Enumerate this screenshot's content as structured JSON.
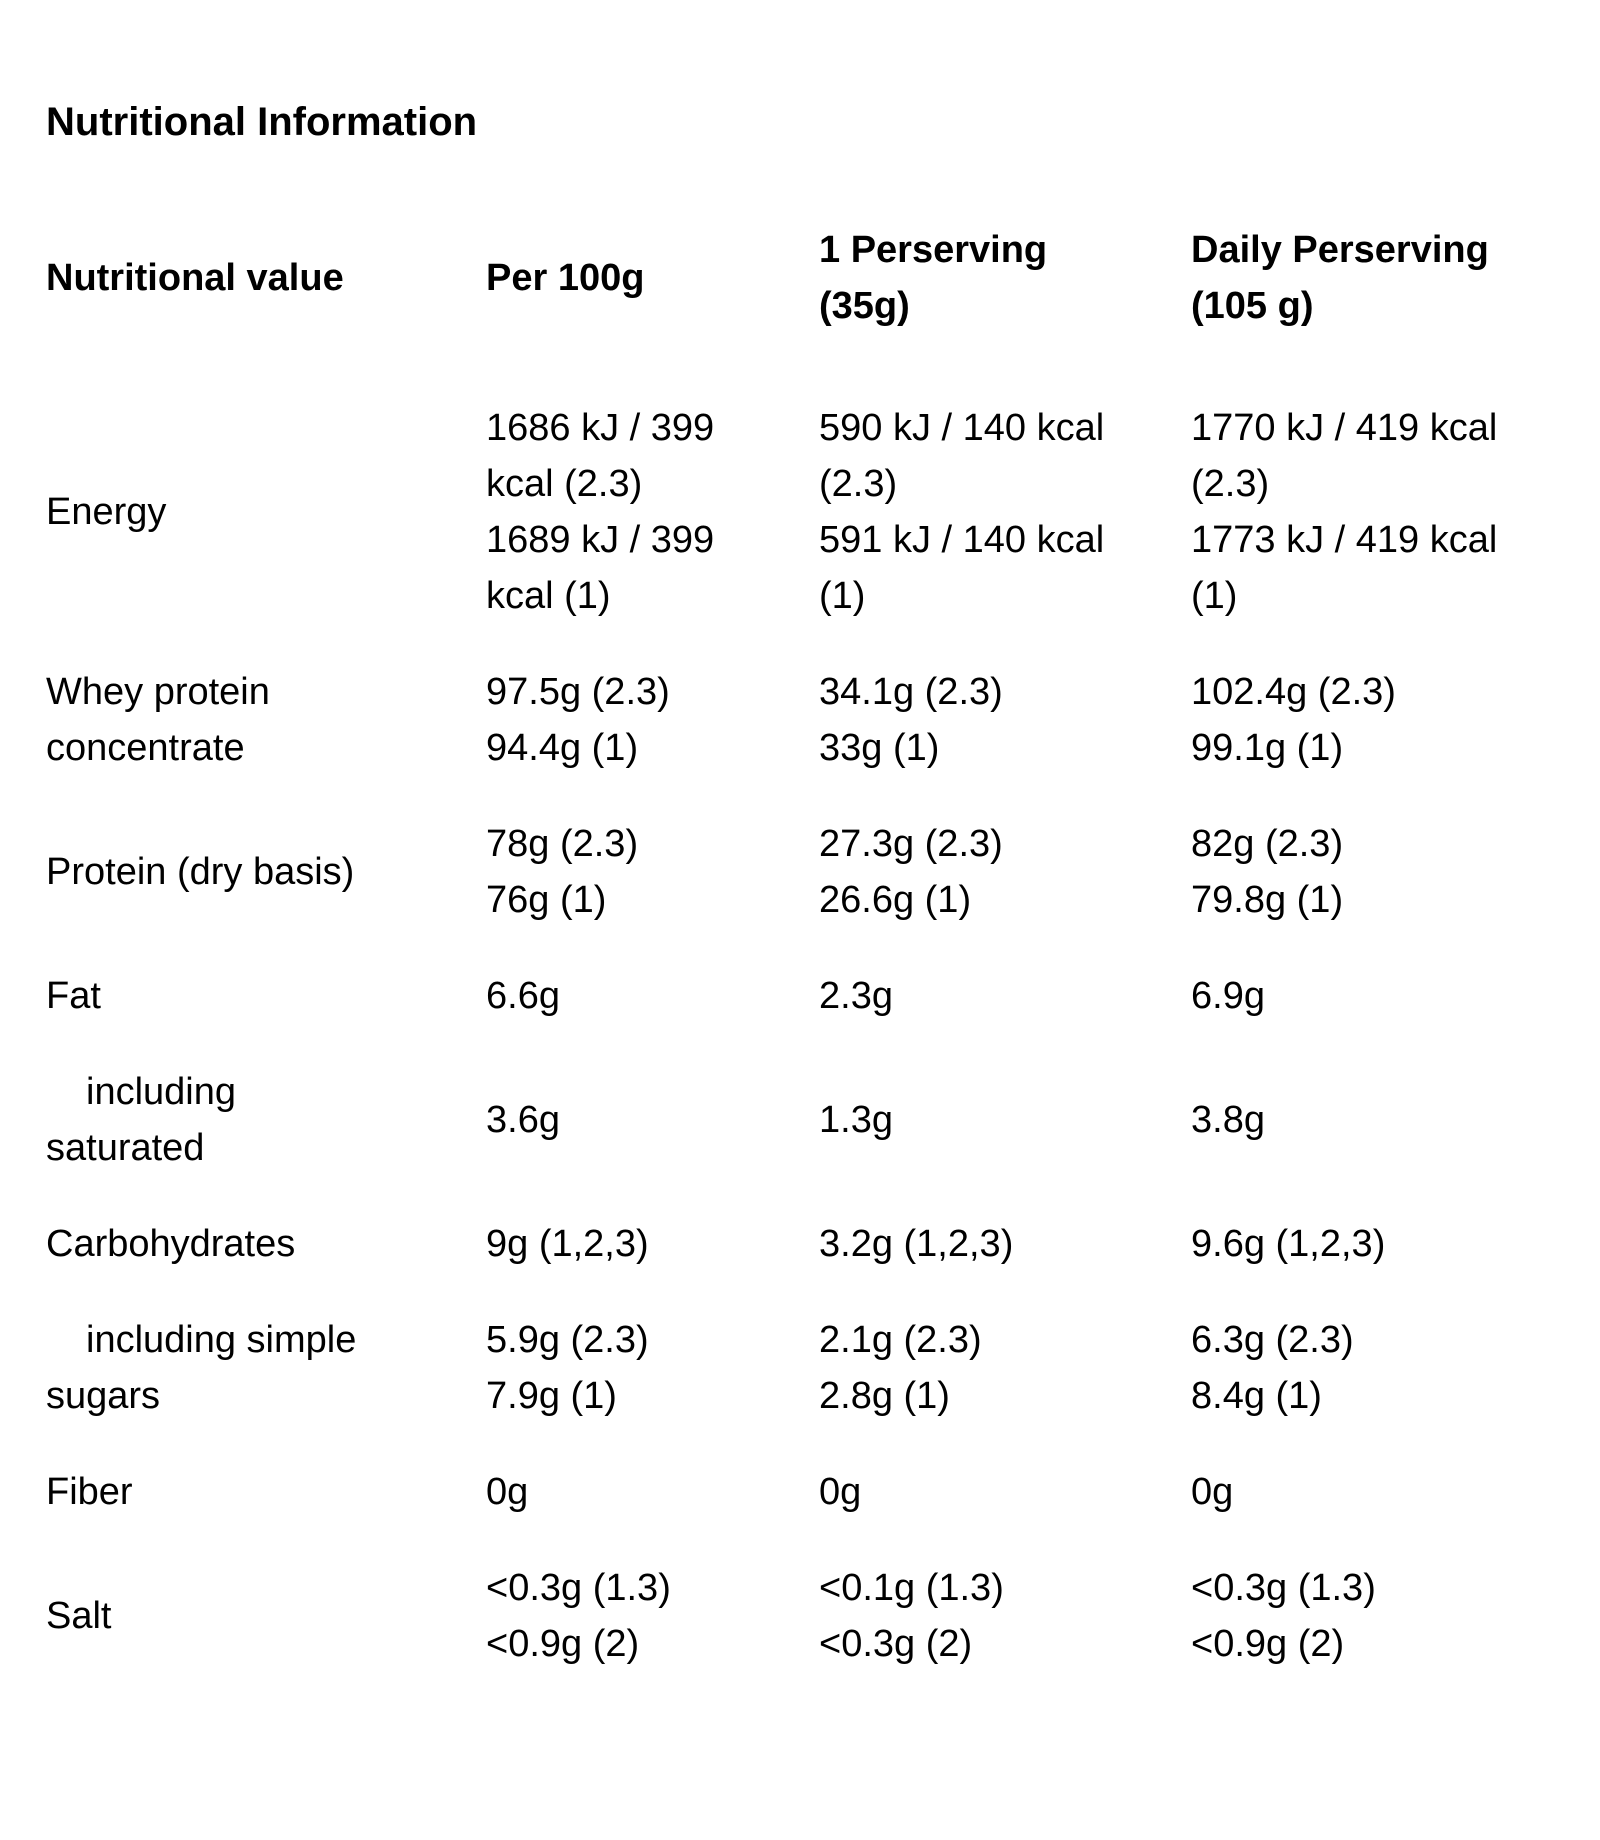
{
  "title": "Nutritional Information",
  "colors": {
    "text": "#000000",
    "background": "#ffffff"
  },
  "table": {
    "headers": {
      "nutrient": "Nutritional value",
      "per_100g": "Per 100g",
      "per_serving": "1 Perserving\n(35g)",
      "daily": "Daily Perserving\n(105 g)"
    },
    "rows": [
      {
        "label": "Energy",
        "indent": false,
        "per_100g": "1686 kJ / 399\nkcal (2.3)\n1689 kJ / 399\nkcal (1)",
        "per_serving": "590 kJ / 140 kcal\n(2.3)\n591 kJ / 140 kcal\n(1)",
        "daily": "1770 kJ / 419 kcal\n(2.3)\n1773 kJ / 419 kcal\n(1)"
      },
      {
        "label": "Whey protein\nconcentrate",
        "indent": false,
        "per_100g": "97.5g (2.3)\n94.4g (1)",
        "per_serving": "34.1g (2.3)\n33g (1)",
        "daily": "102.4g (2.3)\n99.1g (1)"
      },
      {
        "label": "Protein (dry basis)",
        "indent": false,
        "per_100g": "78g (2.3)\n76g (1)",
        "per_serving": "27.3g (2.3)\n26.6g (1)",
        "daily": "82g (2.3)\n79.8g (1)"
      },
      {
        "label": "Fat",
        "indent": false,
        "per_100g": "6.6g",
        "per_serving": "2.3g",
        "daily": "6.9g"
      },
      {
        "label": "including\nsaturated",
        "indent": true,
        "per_100g": "3.6g",
        "per_serving": "1.3g",
        "daily": "3.8g"
      },
      {
        "label": "Carbohydrates",
        "indent": false,
        "per_100g": "9g (1,2,3)",
        "per_serving": "3.2g (1,2,3)",
        "daily": "9.6g (1,2,3)"
      },
      {
        "label": "including simple\nsugars",
        "indent": true,
        "per_100g": "5.9g (2.3)\n7.9g (1)",
        "per_serving": "2.1g (2.3)\n2.8g (1)",
        "daily": "6.3g (2.3)\n8.4g (1)"
      },
      {
        "label": "Fiber",
        "indent": false,
        "per_100g": "0g",
        "per_serving": "0g",
        "daily": "0g"
      },
      {
        "label": "Salt",
        "indent": false,
        "per_100g": "<0.3g (1.3)\n<0.9g (2)",
        "per_serving": "<0.1g (1.3)\n<0.3g (2)",
        "daily": "<0.3g (1.3)\n<0.9g (2)"
      }
    ]
  }
}
